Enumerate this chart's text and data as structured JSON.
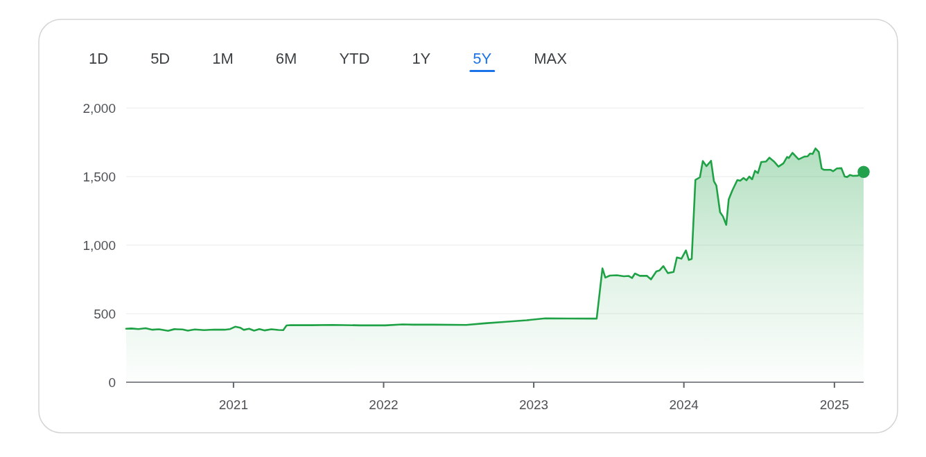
{
  "chart_data": {
    "type": "area",
    "annotations": [
      "1D",
      "5D",
      "1M",
      "6M",
      "YTD",
      "1Y",
      "5Y",
      "MAX"
    ],
    "x": [
      "2020-04-15",
      "2020-04-28",
      "2020-05-15",
      "2020-06-01",
      "2020-06-18",
      "2020-07-04",
      "2020-07-26",
      "2020-08-10",
      "2020-08-30",
      "2020-09-12",
      "2020-09-29",
      "2020-10-21",
      "2020-11-15",
      "2020-12-10",
      "2020-12-24",
      "2021-01-05",
      "2021-01-17",
      "2021-01-26",
      "2021-02-08",
      "2021-02-20",
      "2021-03-05",
      "2021-03-18",
      "2021-04-03",
      "2021-04-20",
      "2021-05-02",
      "2021-05-10",
      "2021-05-20",
      "2021-07-10",
      "2021-08-30",
      "2021-11-05",
      "2022-01-05",
      "2022-02-16",
      "2022-03-13",
      "2022-05-03",
      "2022-07-21",
      "2022-09-05",
      "2022-10-25",
      "2022-12-15",
      "2023-01-29",
      "2023-03-26",
      "2023-06-03",
      "2023-06-17",
      "2023-06-24",
      "2023-07-05",
      "2023-07-22",
      "2023-08-08",
      "2023-08-20",
      "2023-08-28",
      "2023-09-04",
      "2023-09-16",
      "2023-10-03",
      "2023-10-13",
      "2023-10-26",
      "2023-11-03",
      "2023-11-12",
      "2023-11-23",
      "2023-12-07",
      "2023-12-15",
      "2023-12-26",
      "2024-01-06",
      "2024-01-13",
      "2024-01-20",
      "2024-01-29",
      "2024-02-09",
      "2024-02-16",
      "2024-02-25",
      "2024-03-07",
      "2024-03-14",
      "2024-03-20",
      "2024-03-29",
      "2024-04-05",
      "2024-04-13",
      "2024-04-19",
      "2024-04-28",
      "2024-05-10",
      "2024-05-17",
      "2024-05-25",
      "2024-06-01",
      "2024-06-08",
      "2024-06-15",
      "2024-06-22",
      "2024-06-29",
      "2024-07-07",
      "2024-07-19",
      "2024-07-27",
      "2024-08-07",
      "2024-08-18",
      "2024-08-30",
      "2024-09-08",
      "2024-09-12",
      "2024-09-21",
      "2024-10-06",
      "2024-10-20",
      "2024-10-28",
      "2024-11-03",
      "2024-11-09",
      "2024-11-16",
      "2024-11-24",
      "2024-12-01",
      "2024-12-07",
      "2024-12-23",
      "2024-12-29",
      "2025-01-07",
      "2025-01-18",
      "2025-01-26",
      "2025-02-01",
      "2025-02-08",
      "2025-02-15",
      "2025-02-27",
      "2025-03-13"
    ],
    "series": [
      {
        "color": "#1fa246",
        "values": [
          390,
          392,
          388,
          394,
          383,
          386,
          375,
          387,
          385,
          376,
          385,
          380,
          384,
          383,
          388,
          405,
          398,
          382,
          390,
          376,
          388,
          378,
          386,
          381,
          380,
          414,
          417,
          416,
          418,
          415,
          415,
          422,
          420,
          420,
          418,
          430,
          441,
          452,
          466,
          465,
          464,
          830,
          763,
          778,
          780,
          773,
          775,
          760,
          793,
          776,
          776,
          750,
          808,
          816,
          847,
          796,
          804,
          910,
          901,
          962,
          892,
          899,
          1475,
          1495,
          1613,
          1576,
          1615,
          1467,
          1434,
          1240,
          1210,
          1148,
          1333,
          1400,
          1475,
          1470,
          1490,
          1473,
          1500,
          1480,
          1542,
          1525,
          1606,
          1610,
          1638,
          1610,
          1573,
          1597,
          1643,
          1635,
          1673,
          1626,
          1646,
          1648,
          1668,
          1665,
          1705,
          1680,
          1559,
          1549,
          1549,
          1539,
          1559,
          1561,
          1500,
          1497,
          1512,
          1505,
          1507,
          1534
        ]
      },
      {
        "type": "scatter",
        "color": "#23a14d",
        "marker": "circle",
        "x": [
          "2025-03-13"
        ],
        "values": [
          1534
        ]
      }
    ],
    "xlim": [
      "2020-04-15",
      "2025-03-13"
    ],
    "xticks": [
      {
        "value": "2021-01-01",
        "label": "2021"
      },
      {
        "value": "2022-01-01",
        "label": "2022"
      },
      {
        "value": "2023-01-01",
        "label": "2023"
      },
      {
        "value": "2024-01-01",
        "label": "2024"
      },
      {
        "value": "2025-01-01",
        "label": "2025"
      }
    ],
    "ylim": [
      0,
      2000
    ],
    "yticks": [
      0,
      500,
      {
        "value": 1000,
        "label": "1,000"
      },
      {
        "value": 1500,
        "label": "1,500"
      },
      {
        "value": 2000,
        "label": "2,000"
      }
    ],
    "grid": "y"
  }
}
